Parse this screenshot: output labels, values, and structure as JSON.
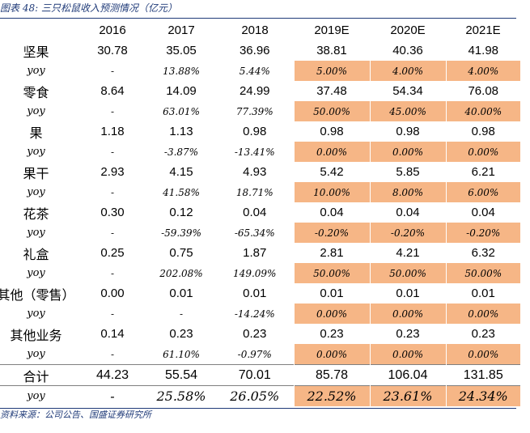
{
  "title": "图表 48: 三只松鼠收入预测情况（亿元）",
  "source": "资料来源：公司公告、国盛证券研究所",
  "columns": [
    "",
    "2016",
    "2017",
    "2018",
    "2019E",
    "2020E",
    "2021E"
  ],
  "rows": [
    {
      "label": "坚果",
      "values": [
        "30.78",
        "35.05",
        "36.96",
        "38.81",
        "40.36",
        "41.98"
      ]
    },
    {
      "label": "yoy",
      "values": [
        "-",
        "13.88%",
        "5.44%",
        "5.00%",
        "4.00%",
        "4.00%"
      ]
    },
    {
      "label": "零食",
      "values": [
        "8.64",
        "14.09",
        "24.99",
        "37.48",
        "54.34",
        "76.08"
      ]
    },
    {
      "label": "yoy",
      "values": [
        "-",
        "63.01%",
        "77.39%",
        "50.00%",
        "45.00%",
        "40.00%"
      ]
    },
    {
      "label": "果",
      "values": [
        "1.18",
        "1.13",
        "0.98",
        "0.98",
        "0.98",
        "0.98"
      ]
    },
    {
      "label": "yoy",
      "values": [
        "-",
        "-3.87%",
        "-13.41%",
        "0.00%",
        "0.00%",
        "0.00%"
      ]
    },
    {
      "label": "果干",
      "values": [
        "2.93",
        "4.15",
        "4.93",
        "5.42",
        "5.85",
        "6.21"
      ]
    },
    {
      "label": "yoy",
      "values": [
        "-",
        "41.58%",
        "18.71%",
        "10.00%",
        "8.00%",
        "6.00%"
      ]
    },
    {
      "label": "花茶",
      "values": [
        "0.30",
        "0.12",
        "0.04",
        "0.04",
        "0.04",
        "0.04"
      ]
    },
    {
      "label": "yoy",
      "values": [
        "-",
        "-59.39%",
        "-65.34%",
        "-0.20%",
        "-0.20%",
        "-0.20%"
      ]
    },
    {
      "label": "礼盒",
      "values": [
        "0.25",
        "0.75",
        "1.87",
        "2.81",
        "4.21",
        "6.32"
      ]
    },
    {
      "label": "yoy",
      "values": [
        "-",
        "202.08%",
        "149.09%",
        "50.00%",
        "50.00%",
        "50.00%"
      ]
    },
    {
      "label": "其他（零售）",
      "values": [
        "0.00",
        "0.01",
        "0.01",
        "0.01",
        "0.01",
        "0.01"
      ]
    },
    {
      "label": "yoy",
      "values": [
        "-",
        "-",
        "-14.24%",
        "0.00%",
        "0.00%",
        "0.00%"
      ]
    },
    {
      "label": "其他业务",
      "values": [
        "0.14",
        "0.23",
        "0.23",
        "0.23",
        "0.23",
        "0.23"
      ]
    },
    {
      "label": "yoy",
      "values": [
        "-",
        "61.10%",
        "-0.97%",
        "0.00%",
        "0.00%",
        "0.00%"
      ]
    },
    {
      "label": "合计",
      "values": [
        "44.23",
        "55.54",
        "70.01",
        "85.78",
        "106.04",
        "131.85"
      ]
    },
    {
      "label": "yoy",
      "values": [
        "-",
        "25.58%",
        "26.05%",
        "22.52%",
        "23.61%",
        "24.34%"
      ]
    }
  ],
  "colors": {
    "title": "#1f3a78",
    "forecast_highlight": "#f6b686",
    "rule": "#1f3a78"
  }
}
